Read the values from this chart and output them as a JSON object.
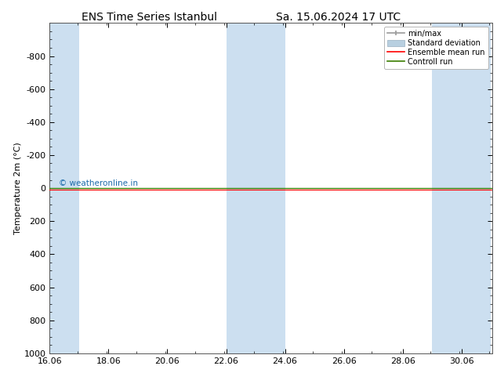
{
  "title_left": "ENS Time Series Istanbul",
  "title_right": "Sa. 15.06.2024 17 UTC",
  "ylabel": "Temperature 2m (°C)",
  "xlim_start": 16.06,
  "xlim_end": 31.1,
  "ylim_bottom": 1000,
  "ylim_top": -1000,
  "yticks": [
    -800,
    -600,
    -400,
    -200,
    0,
    200,
    400,
    600,
    800,
    1000
  ],
  "xticks": [
    16.06,
    18.06,
    20.06,
    22.06,
    24.06,
    26.06,
    28.06,
    30.06
  ],
  "xlabel_labels": [
    "16.06",
    "18.06",
    "20.06",
    "22.06",
    "24.06",
    "26.06",
    "28.06",
    "30.06"
  ],
  "background_color": "#ffffff",
  "plot_bg_color": "#ffffff",
  "shaded_bands": [
    [
      16.06,
      17.06
    ],
    [
      22.06,
      23.06
    ],
    [
      23.06,
      24.06
    ],
    [
      29.06,
      30.06
    ],
    [
      30.06,
      31.06
    ]
  ],
  "shade_color": "#ccdff0",
  "line_color_green": "#3a7d00",
  "line_color_red": "#ff0000",
  "watermark_text": "© weatheronline.in",
  "watermark_color": "#1a6aaa",
  "title_fontsize": 10,
  "axis_fontsize": 8,
  "tick_fontsize": 8,
  "legend_minmax_color": "#999999",
  "legend_std_color": "#b8cfe0",
  "legend_ens_color": "#ff0000",
  "legend_ctrl_color": "#3a7d00"
}
